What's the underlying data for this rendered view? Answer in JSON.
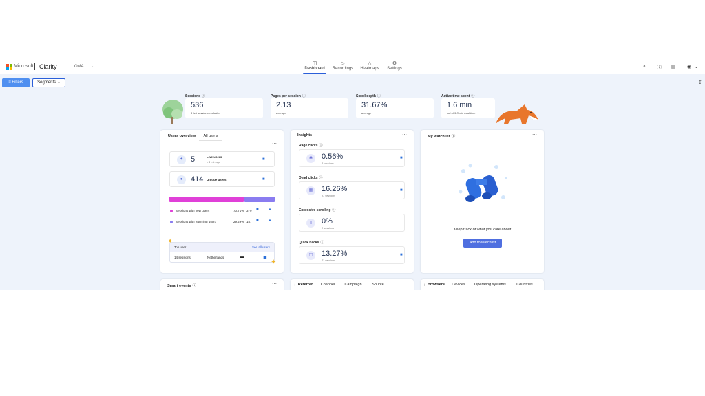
{
  "brand": {
    "ms": "Microsoft",
    "app": "Clarity",
    "colors": {
      "ms_red": "#f25022",
      "ms_green": "#7fba00",
      "ms_blue": "#00a4ef",
      "ms_yellow": "#ffb900"
    }
  },
  "project": {
    "name": "OMA"
  },
  "nav": [
    {
      "label": "Dashboard",
      "icon": "dashboard-icon"
    },
    {
      "label": "Recordings",
      "icon": "recordings-icon"
    },
    {
      "label": "Heatmaps",
      "icon": "heatmaps-icon"
    },
    {
      "label": "Settings",
      "icon": "settings-icon"
    }
  ],
  "toolbar": {
    "filters": "Filters",
    "segments": "Segments"
  },
  "stats": [
    {
      "label": "Sessions",
      "value": "536",
      "sub": "1 bot sessions excluded"
    },
    {
      "label": "Pages per session",
      "value": "2.13",
      "sub": "average"
    },
    {
      "label": "Scroll depth",
      "value": "31.67%",
      "sub": "average"
    },
    {
      "label": "Active time spent",
      "value": "1.6 min",
      "sub": "out of 5.3 min total time"
    }
  ],
  "users": {
    "tabs": [
      "Users overview",
      "All users"
    ],
    "live": {
      "value": "5",
      "label": "Live users",
      "sub": "< 1 min ago"
    },
    "unique": {
      "value": "414",
      "label": "Unique users"
    },
    "new_pct": 70.71,
    "rows": [
      {
        "label": "Sessions with new users",
        "pct": "70.71%",
        "count": "379"
      },
      {
        "label": "Sessions with returning users",
        "pct": "29.29%",
        "count": "157"
      }
    ],
    "top_user": {
      "title": "Top user",
      "link": "See all users",
      "sessions": "14 sessions",
      "country": "Netherlands"
    },
    "colors": {
      "new": "#e040d8",
      "returning": "#8a7cf0"
    }
  },
  "insights": {
    "title": "Insights",
    "items": [
      {
        "label": "Rage clicks",
        "value": "0.56%",
        "sub": "3 sessions"
      },
      {
        "label": "Dead clicks",
        "value": "16.26%",
        "sub": "87 sessions"
      },
      {
        "label": "Excessive scrolling",
        "value": "0%",
        "sub": "0 sessions"
      },
      {
        "label": "Quick backs",
        "value": "13.27%",
        "sub": "71 sessions"
      }
    ]
  },
  "watchlist": {
    "title": "My watchlist",
    "text": "Keep track of what you care about",
    "button": "Add to watchlist"
  },
  "bottom": {
    "smart_events": "Smart events",
    "referrer_tabs": [
      "Referrer",
      "Channel",
      "Campaign",
      "Source"
    ],
    "browser_tabs": [
      "Browsers",
      "Devices",
      "Operating systems",
      "Countries"
    ]
  }
}
